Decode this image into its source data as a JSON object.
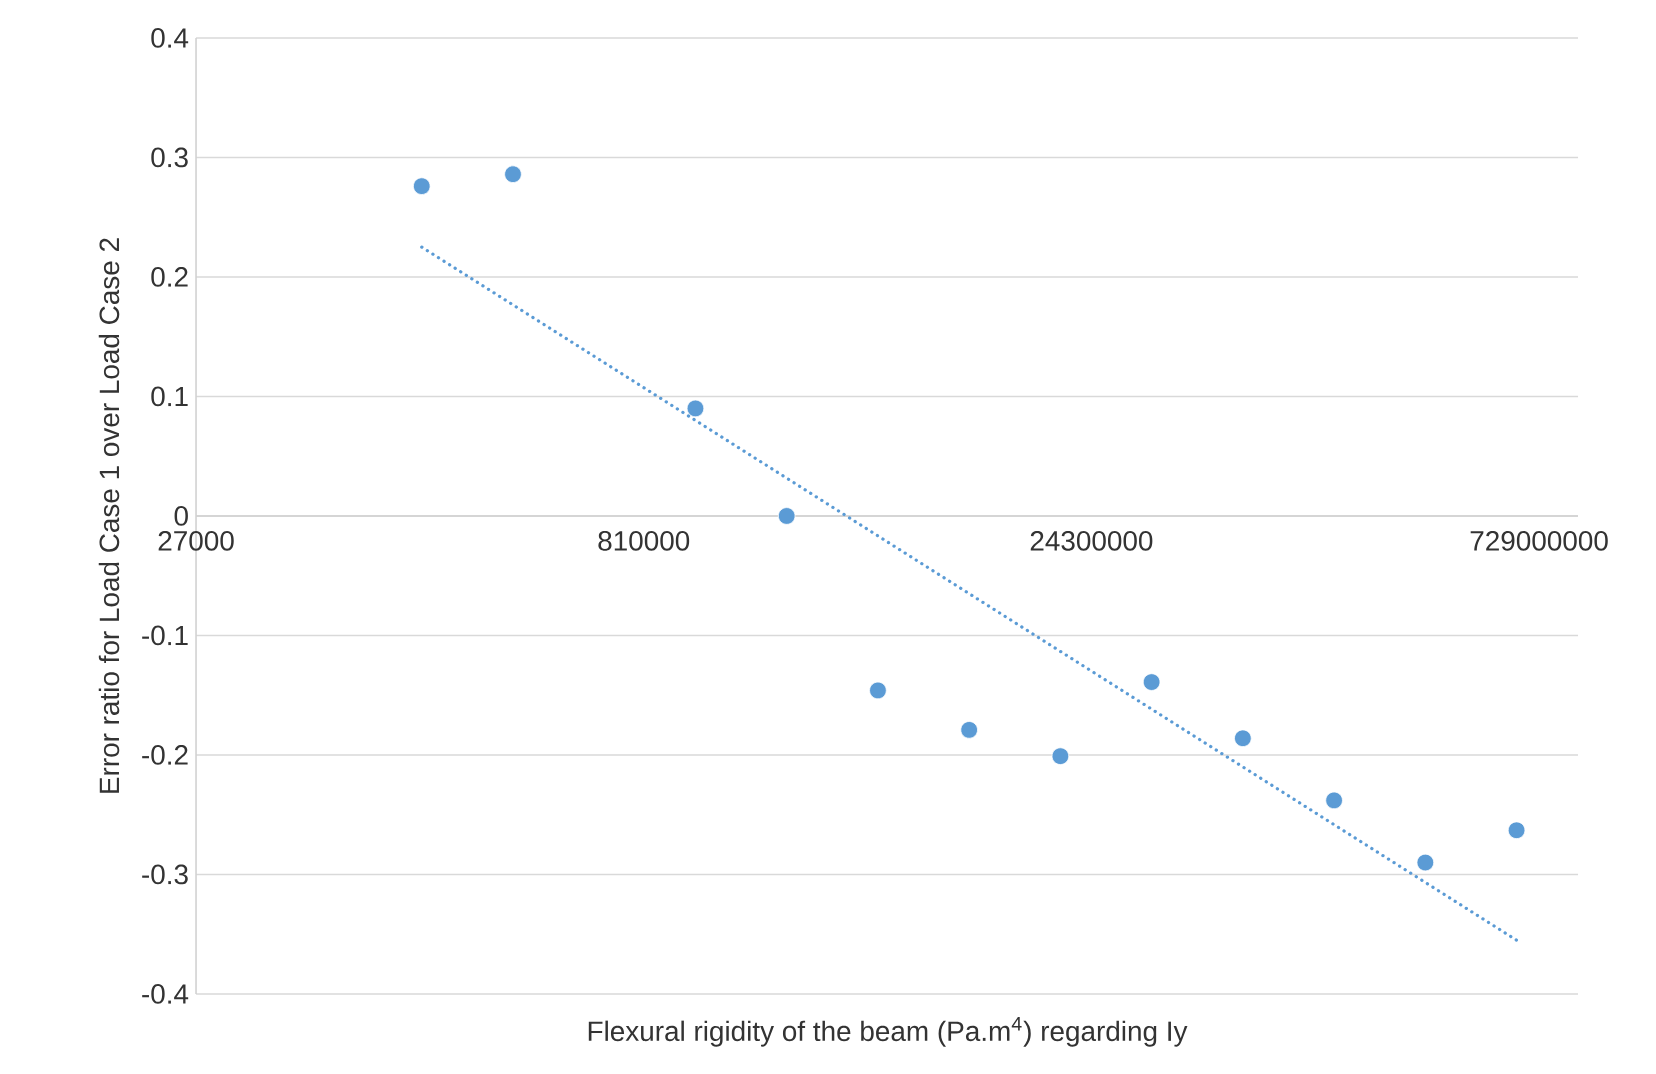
{
  "chart_data": {
    "type": "scatter",
    "xlabel": "Flexural rigidity of the beam (Pa.m$^{4}$) regarding Iy",
    "ylabel": "Error ratio for Load Case 1 over Load Case 2",
    "log": "x",
    "grid": "y",
    "xlim": [
      27000,
      980000000
    ],
    "xticks": [
      27000,
      810000,
      24300000,
      729000000
    ],
    "ylim": [
      -0.4,
      0.4
    ],
    "yticks": [
      -0.4,
      -0.3,
      -0.2,
      -0.1,
      0,
      0.1,
      0.2,
      0.3,
      0.4
    ],
    "series": [
      {
        "color": "#5b9bd5",
        "marker": "circle",
        "x": [
          150000,
          300000,
          1200000,
          2400000,
          4800000,
          9600000,
          19200000,
          38400000,
          76800000,
          153600000,
          307200000,
          614400000
        ],
        "values": [
          0.276,
          0.286,
          0.09,
          0.0,
          -0.146,
          -0.179,
          -0.201,
          -0.139,
          -0.186,
          -0.238,
          -0.29,
          -0.263
        ]
      },
      {
        "type": "line",
        "color": "#5b9bd5",
        "marker": "none",
        "line_style": "dotted",
        "x": [
          150000,
          614400000
        ],
        "values": [
          0.225,
          -0.355
        ]
      }
    ]
  }
}
